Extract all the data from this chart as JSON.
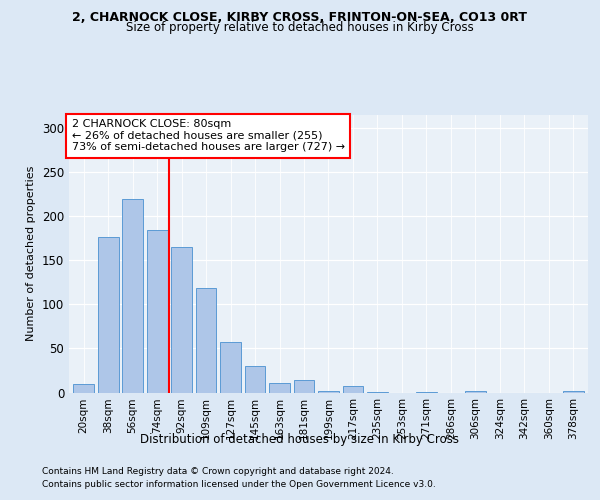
{
  "title_line1": "2, CHARNOCK CLOSE, KIRBY CROSS, FRINTON-ON-SEA, CO13 0RT",
  "title_line2": "Size of property relative to detached houses in Kirby Cross",
  "xlabel": "Distribution of detached houses by size in Kirby Cross",
  "ylabel": "Number of detached properties",
  "categories": [
    "20sqm",
    "38sqm",
    "56sqm",
    "74sqm",
    "92sqm",
    "109sqm",
    "127sqm",
    "145sqm",
    "163sqm",
    "181sqm",
    "199sqm",
    "217sqm",
    "235sqm",
    "253sqm",
    "271sqm",
    "286sqm",
    "306sqm",
    "324sqm",
    "342sqm",
    "360sqm",
    "378sqm"
  ],
  "values": [
    10,
    177,
    220,
    185,
    165,
    119,
    57,
    30,
    11,
    14,
    2,
    7,
    1,
    0,
    1,
    0,
    2,
    0,
    0,
    0,
    2
  ],
  "bar_color": "#aec6e8",
  "bar_edge_color": "#5b9bd5",
  "vline_x": 3.5,
  "vline_color": "red",
  "annotation_text": "2 CHARNOCK CLOSE: 80sqm\n← 26% of detached houses are smaller (255)\n73% of semi-detached houses are larger (727) →",
  "annotation_box_color": "white",
  "annotation_box_edge_color": "red",
  "ylim": [
    0,
    315
  ],
  "yticks": [
    0,
    50,
    100,
    150,
    200,
    250,
    300
  ],
  "footer_line1": "Contains HM Land Registry data © Crown copyright and database right 2024.",
  "footer_line2": "Contains public sector information licensed under the Open Government Licence v3.0.",
  "bg_color": "#dce8f5",
  "plot_bg_color": "#eaf1f8"
}
